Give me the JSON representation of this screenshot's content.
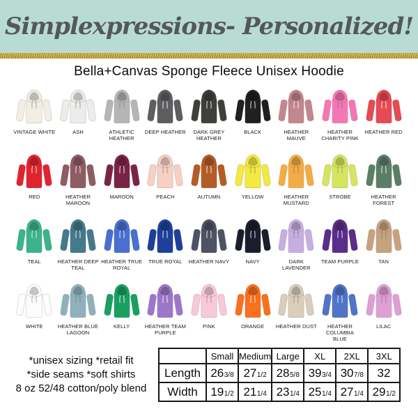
{
  "banner": {
    "brand": "Simplexpressions- Personalized!",
    "background": "#b8dcd3",
    "text_color": "#54585b",
    "glitter_gold": "#c9a227"
  },
  "title": "Bella+Canvas Sponge Fleece Unisex Hoodie",
  "colors": [
    {
      "label": "VINTAGE WHITE",
      "hex": "#f2eee3"
    },
    {
      "label": "ASH",
      "hex": "#ececea"
    },
    {
      "label": "ATHLETIC HEATHER",
      "hex": "#b5b5b5"
    },
    {
      "label": "DEEP HEATHER",
      "hex": "#5d5e60"
    },
    {
      "label": "DARK GREY HEATHER",
      "hex": "#3e403c"
    },
    {
      "label": "BLACK",
      "hex": "#211f20"
    },
    {
      "label": "HEATHER MAUVE",
      "hex": "#c3868e"
    },
    {
      "label": "HEATHER CHARITY PINK",
      "hex": "#f477b5"
    },
    {
      "label": "HEATHER RED",
      "hex": "#e64a54"
    },
    {
      "label": "RED",
      "hex": "#e0242f"
    },
    {
      "label": "HEATHER MAROON",
      "hex": "#8f5c63"
    },
    {
      "label": "MAROON",
      "hex": "#7b2347"
    },
    {
      "label": "PEACH",
      "hex": "#f6d0c3"
    },
    {
      "label": "AUTUMN",
      "hex": "#b45c28"
    },
    {
      "label": "YELLOW",
      "hex": "#f3e93f"
    },
    {
      "label": "HEATHER MUSTARD",
      "hex": "#f2ac45"
    },
    {
      "label": "STROBE",
      "hex": "#d6e55e"
    },
    {
      "label": "HEATHER FOREST",
      "hex": "#5b7e66"
    },
    {
      "label": "TEAL",
      "hex": "#3cb389"
    },
    {
      "label": "HEATHER DEEP TEAL",
      "hex": "#45798c"
    },
    {
      "label": "HEATHER TRUE ROYAL",
      "hex": "#4a6fd0"
    },
    {
      "label": "TRUE ROYAL",
      "hex": "#1e409b"
    },
    {
      "label": "HEATHER NAVY",
      "hex": "#4e5364"
    },
    {
      "label": "NAVY",
      "hex": "#1a1e2c"
    },
    {
      "label": "DARK LAVENDER",
      "hex": "#c6aee0"
    },
    {
      "label": "TEAM PURPLE",
      "hex": "#5a2d8a"
    },
    {
      "label": "TAN",
      "hex": "#c7a27e"
    },
    {
      "label": "WHITE",
      "hex": "#fdfdfd"
    },
    {
      "label": "HEATHER BLUE LAGOON",
      "hex": "#8fb1bc"
    },
    {
      "label": "KELLY",
      "hex": "#199f61"
    },
    {
      "label": "HEATHER TEAM PURPLE",
      "hex": "#9c77c8"
    },
    {
      "label": "PINK",
      "hex": "#f9c8da"
    },
    {
      "label": "ORANGE",
      "hex": "#f9701f"
    },
    {
      "label": "HEATHER DUST",
      "hex": "#dacdba"
    },
    {
      "label": "HEATHER COLUMBIA BLUE",
      "hex": "#4f74c9"
    },
    {
      "label": "LILAC",
      "hex": "#dd9fd4"
    }
  ],
  "details": [
    "*unisex sizing *retail fit",
    "*side seams  *soft shirts",
    "8 oz 52/48 cotton/poly blend"
  ],
  "size_chart": {
    "columns": [
      "Small",
      "Medium",
      "Large",
      "XL",
      "2XL",
      "3XL"
    ],
    "rows": [
      {
        "label": "Length",
        "values": [
          {
            "whole": "26",
            "frac": "3/8"
          },
          {
            "whole": "27",
            "frac": "1/2"
          },
          {
            "whole": "28",
            "frac": "5/8"
          },
          {
            "whole": "39",
            "frac": "3/4"
          },
          {
            "whole": "30",
            "frac": "7/8"
          },
          {
            "whole": "32",
            "frac": ""
          }
        ]
      },
      {
        "label": "Width",
        "values": [
          {
            "whole": "19",
            "frac": "1/2"
          },
          {
            "whole": "21",
            "frac": "1/4"
          },
          {
            "whole": "23",
            "frac": "1/4"
          },
          {
            "whole": "25",
            "frac": "1/4"
          },
          {
            "whole": "27",
            "frac": "1/4"
          },
          {
            "whole": "29",
            "frac": "1/2"
          }
        ]
      }
    ]
  }
}
